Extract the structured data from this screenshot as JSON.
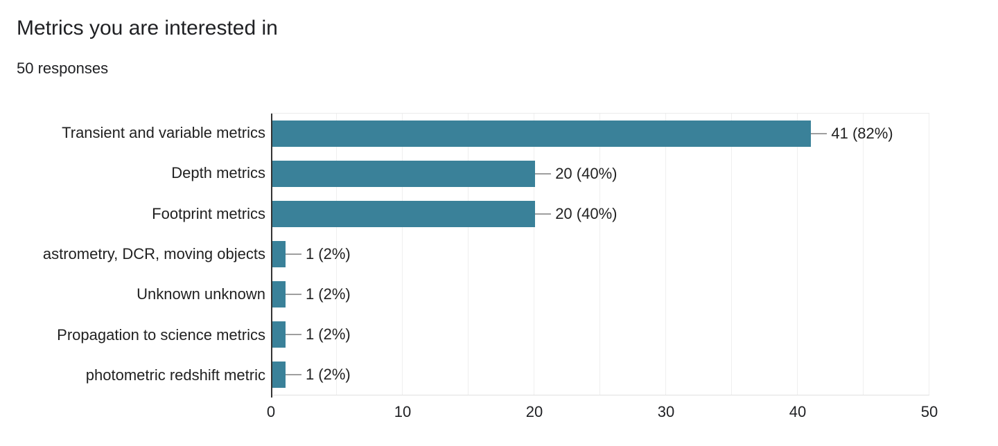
{
  "header": {
    "title": "Metrics you are interested in",
    "subtitle": "50 responses"
  },
  "chart_data": {
    "type": "bar",
    "orientation": "horizontal",
    "title": "Metrics you are interested in",
    "subtitle": "50 responses",
    "categories": [
      "Transient and variable metrics",
      "Depth metrics",
      "Footprint metrics",
      "astrometry, DCR, moving objects",
      "Unknown unknown",
      "Propagation to science metrics",
      "photometric redshift metric"
    ],
    "values": [
      41,
      20,
      20,
      1,
      1,
      1,
      1
    ],
    "percentages": [
      82,
      40,
      40,
      2,
      2,
      2,
      2
    ],
    "value_labels": [
      "41 (82%)",
      "20 (40%)",
      "20 (40%)",
      "1 (2%)",
      "1 (2%)",
      "1 (2%)",
      "1 (2%)"
    ],
    "xlabel": "",
    "ylabel": "",
    "xlim": [
      0,
      50
    ],
    "x_ticks": [
      "0",
      "10",
      "20",
      "30",
      "40",
      "50"
    ],
    "x_tick_values": [
      0,
      10,
      20,
      30,
      40,
      50
    ],
    "gridline_step": 5,
    "grid": true,
    "legend": "none",
    "colors": {
      "bar": "#3a8199",
      "axis_line": "#333333",
      "gridline": "#efefef",
      "connector": "#9e9e9e",
      "text": "#212121"
    }
  }
}
